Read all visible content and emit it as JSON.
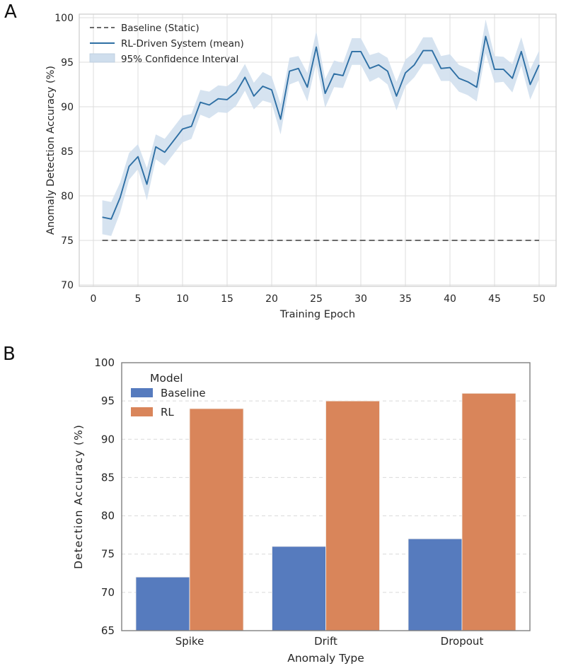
{
  "figure": {
    "panel_a_label": "A",
    "panel_b_label": "B"
  },
  "colors": {
    "mean_line": "#2E6FA4",
    "ci_band": "#CFDEED",
    "baseline_dash": "#555555",
    "bar_baseline": "#567BBE",
    "bar_rl": "#D9855A",
    "grid_a": "#DCDCDC",
    "grid_b": "#D9D9D9",
    "spine_a": "#CCCCCC",
    "spine_b": "#808080",
    "text": "#262626"
  },
  "chart_data": [
    {
      "type": "line",
      "panel": "A",
      "title": "",
      "xlabel": "Training Epoch",
      "ylabel": "Anomaly Detection Accuracy (%)",
      "xlim": [
        0,
        50
      ],
      "ylim": [
        70,
        100
      ],
      "xticks": [
        0,
        5,
        10,
        15,
        20,
        25,
        30,
        35,
        40,
        45,
        50
      ],
      "yticks": [
        70,
        75,
        80,
        85,
        90,
        95,
        100
      ],
      "grid": "solid light gray, both axes",
      "legend_position": "upper left, no frame",
      "baseline_label": "Baseline (Static)",
      "baseline_value": 75,
      "mean_label": "RL-Driven System (mean)",
      "ci_label": "95% Confidence Interval",
      "epochs": [
        1,
        2,
        3,
        4,
        5,
        6,
        7,
        8,
        9,
        10,
        11,
        12,
        13,
        14,
        15,
        16,
        17,
        18,
        19,
        20,
        21,
        22,
        23,
        24,
        25,
        26,
        27,
        28,
        29,
        30,
        31,
        32,
        33,
        34,
        35,
        36,
        37,
        38,
        39,
        40,
        41,
        42,
        43,
        44,
        45,
        46,
        47,
        48,
        49,
        50
      ],
      "mean_accuracy": [
        77.6,
        77.4,
        79.8,
        83.3,
        84.4,
        81.3,
        85.5,
        84.9,
        86.2,
        87.5,
        87.8,
        90.5,
        90.2,
        90.9,
        90.8,
        91.6,
        93.3,
        91.2,
        92.3,
        91.9,
        88.6,
        94.0,
        94.3,
        92.2,
        96.7,
        91.5,
        93.7,
        93.5,
        96.2,
        96.2,
        94.3,
        94.7,
        94.0,
        91.2,
        93.8,
        94.7,
        96.3,
        96.3,
        94.3,
        94.4,
        93.2,
        92.8,
        92.2,
        97.9,
        94.2,
        94.2,
        93.2,
        96.2,
        92.5,
        94.7
      ],
      "ci_halfwidth": [
        1.9,
        1.9,
        1.7,
        1.5,
        1.4,
        1.8,
        1.4,
        1.5,
        1.5,
        1.5,
        1.4,
        1.4,
        1.5,
        1.5,
        1.5,
        1.5,
        1.5,
        1.5,
        1.6,
        1.5,
        1.7,
        1.5,
        1.4,
        1.6,
        1.8,
        1.6,
        1.5,
        1.4,
        1.5,
        1.5,
        1.5,
        1.4,
        1.5,
        1.6,
        1.5,
        1.4,
        1.5,
        1.5,
        1.4,
        1.5,
        1.5,
        1.5,
        1.6,
        1.9,
        1.5,
        1.4,
        1.6,
        1.6,
        1.7,
        1.6
      ]
    },
    {
      "type": "bar",
      "panel": "B",
      "title": "",
      "xlabel": "Anomaly Type",
      "ylabel": "Detection Accuracy (%)",
      "ylim": [
        65,
        100
      ],
      "yticks": [
        65,
        70,
        75,
        80,
        85,
        90,
        95,
        100
      ],
      "grid": "dashed light gray, horizontal only",
      "legend_title": "Model",
      "legend_position": "upper left, no frame",
      "categories": [
        "Spike",
        "Drift",
        "Dropout"
      ],
      "series": [
        {
          "name": "Baseline",
          "values": [
            72,
            76,
            77
          ]
        },
        {
          "name": "RL",
          "values": [
            94,
            95,
            96
          ]
        }
      ]
    }
  ]
}
